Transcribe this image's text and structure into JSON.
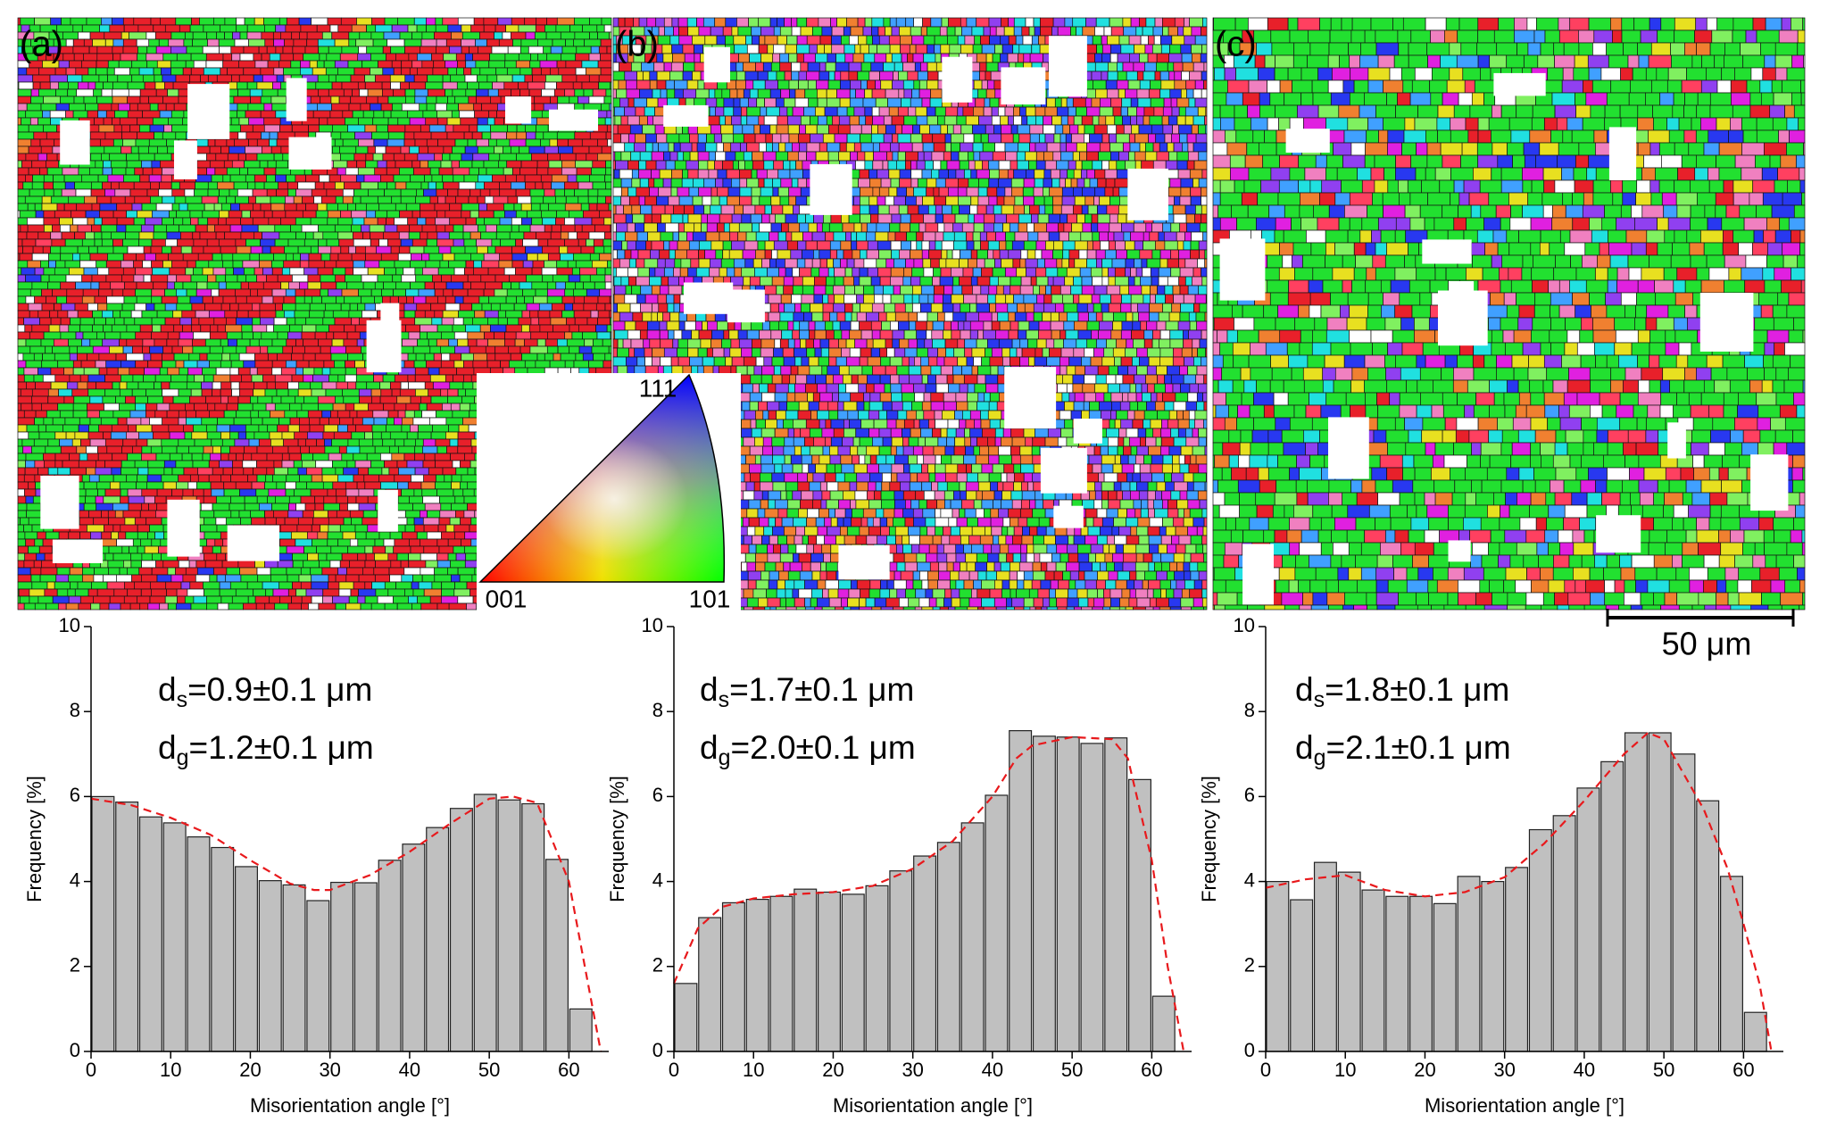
{
  "maps": {
    "labels": [
      "(a)",
      "(b)",
      "(c)"
    ],
    "ipf_labels": [
      "111",
      "001",
      "101"
    ],
    "scale_bar": "50 μm"
  },
  "chart_data": [
    {
      "type": "histogram",
      "ylabel": "Frequency [%]",
      "xlabel": "Misorientation angle [°]",
      "bins": [
        0,
        3,
        6,
        9,
        12,
        15,
        18,
        21,
        24,
        27,
        30,
        33,
        36,
        39,
        42,
        45,
        48,
        51,
        54,
        57,
        60,
        63
      ],
      "values": [
        6.0,
        5.87,
        5.52,
        5.38,
        5.05,
        4.8,
        4.35,
        4.02,
        3.92,
        3.55,
        3.98,
        3.97,
        4.5,
        4.88,
        5.27,
        5.72,
        6.05,
        5.92,
        5.83,
        4.52,
        1.0
      ],
      "color": "#c0c0c0",
      "line": {
        "x": [
          0,
          5,
          10,
          15,
          20,
          25,
          28,
          30,
          35,
          40,
          45,
          50,
          53,
          56,
          60,
          62,
          64
        ],
        "values": [
          5.95,
          5.8,
          5.5,
          5.1,
          4.5,
          3.95,
          3.8,
          3.8,
          4.15,
          4.7,
          5.35,
          5.95,
          6.0,
          5.85,
          4.0,
          2.0,
          0
        ],
        "color": "#e8191c"
      },
      "annotations": [
        {
          "main": "d",
          "sub": "s",
          "rest": "=0.9±0.1 μm"
        },
        {
          "main": "d",
          "sub": "g",
          "rest": "=1.2±0.1 μm"
        }
      ],
      "xlim": [
        0,
        65
      ],
      "xticks": [
        0,
        10,
        20,
        30,
        40,
        50,
        60
      ],
      "ylim": [
        0,
        10
      ],
      "yticks": [
        0,
        2,
        4,
        6,
        8,
        10
      ]
    },
    {
      "type": "histogram",
      "ylabel": "Frequency [%]",
      "xlabel": "Misorientation angle [°]",
      "bins": [
        0,
        3,
        6,
        9,
        12,
        15,
        18,
        21,
        24,
        27,
        30,
        33,
        36,
        39,
        42,
        45,
        48,
        51,
        54,
        57,
        60,
        63
      ],
      "values": [
        1.6,
        3.15,
        3.5,
        3.58,
        3.65,
        3.82,
        3.75,
        3.7,
        3.9,
        4.25,
        4.6,
        4.92,
        5.38,
        6.03,
        7.55,
        7.42,
        7.4,
        7.25,
        7.38,
        6.4,
        1.3
      ],
      "color": "#c0c0c0",
      "line": {
        "x": [
          0,
          3,
          6,
          10,
          15,
          20,
          25,
          30,
          35,
          40,
          43,
          45,
          50,
          55,
          57,
          60,
          62,
          64
        ],
        "values": [
          1.6,
          2.9,
          3.4,
          3.6,
          3.7,
          3.75,
          3.9,
          4.3,
          4.95,
          6.0,
          6.9,
          7.2,
          7.4,
          7.35,
          6.9,
          4.5,
          2.0,
          0
        ],
        "color": "#e8191c"
      },
      "annotations": [
        {
          "main": "d",
          "sub": "s",
          "rest": "=1.7±0.1 μm"
        },
        {
          "main": "d",
          "sub": "g",
          "rest": "=2.0±0.1 μm"
        }
      ],
      "xlim": [
        0,
        65
      ],
      "xticks": [
        0,
        10,
        20,
        30,
        40,
        50,
        60
      ],
      "ylim": [
        0,
        10
      ],
      "yticks": [
        0,
        2,
        4,
        6,
        8,
        10
      ]
    },
    {
      "type": "histogram",
      "ylabel": "Frequency [%]",
      "xlabel": "Misorientation angle [°]",
      "bins": [
        0,
        3,
        6,
        9,
        12,
        15,
        18,
        21,
        24,
        27,
        30,
        33,
        36,
        39,
        42,
        45,
        48,
        51,
        54,
        57,
        60,
        63
      ],
      "values": [
        4.0,
        3.57,
        4.45,
        4.22,
        3.8,
        3.65,
        3.65,
        3.48,
        4.12,
        4.0,
        4.33,
        5.22,
        5.55,
        6.2,
        6.82,
        7.5,
        7.5,
        7.0,
        5.9,
        4.12,
        0.92
      ],
      "color": "#c0c0c0",
      "line": {
        "x": [
          0,
          5,
          10,
          15,
          20,
          25,
          30,
          35,
          40,
          45,
          48,
          50,
          55,
          58,
          60,
          62,
          63.5
        ],
        "values": [
          3.85,
          4.05,
          4.15,
          3.8,
          3.65,
          3.75,
          4.1,
          4.9,
          5.9,
          7.0,
          7.5,
          7.35,
          5.7,
          4.3,
          3.0,
          1.6,
          0
        ],
        "color": "#e8191c"
      },
      "annotations": [
        {
          "main": "d",
          "sub": "s",
          "rest": "=1.8±0.1 μm"
        },
        {
          "main": "d",
          "sub": "g",
          "rest": "=2.1±0.1 μm"
        }
      ],
      "xlim": [
        0,
        65
      ],
      "xticks": [
        0,
        10,
        20,
        30,
        40,
        50,
        60
      ],
      "ylim": [
        0,
        10
      ],
      "yticks": [
        0,
        2,
        4,
        6,
        8,
        10
      ]
    }
  ]
}
